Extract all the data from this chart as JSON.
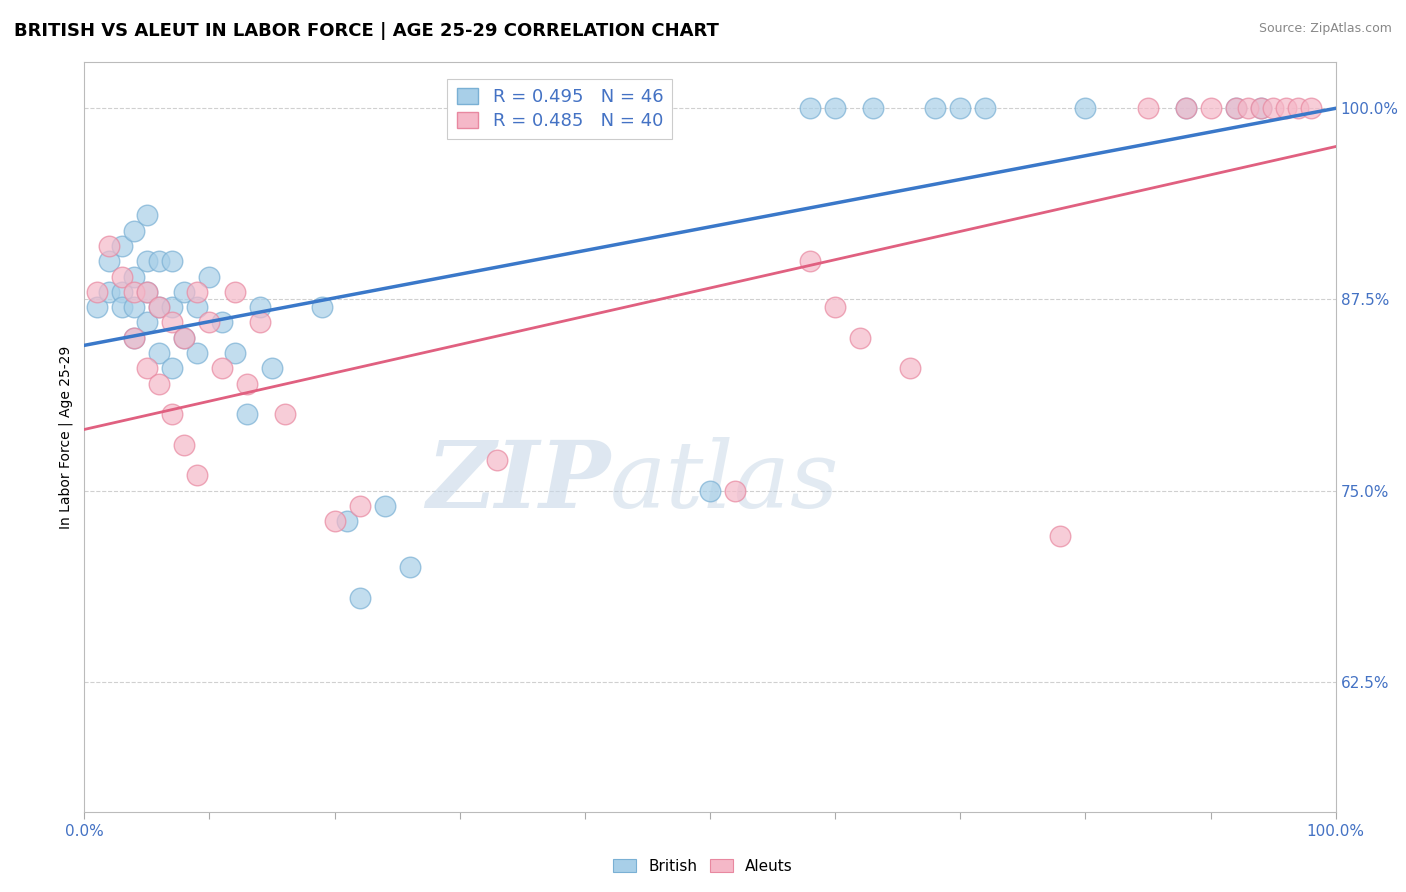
{
  "title": "BRITISH VS ALEUT IN LABOR FORCE | AGE 25-29 CORRELATION CHART",
  "source_text": "Source: ZipAtlas.com",
  "ylabel": "In Labor Force | Age 25-29",
  "british_R": 0.495,
  "british_N": 46,
  "aleut_R": 0.485,
  "aleut_N": 40,
  "british_color": "#a8cfe8",
  "aleut_color": "#f5b8c8",
  "british_edge_color": "#7ab0d4",
  "aleut_edge_color": "#e888a0",
  "british_line_color": "#3a78c9",
  "aleut_line_color": "#e06080",
  "axis_label_color": "#4472C4",
  "background_color": "#ffffff",
  "xmin": 0.0,
  "xmax": 1.0,
  "ymin": 0.54,
  "ymax": 1.03,
  "yticks": [
    0.625,
    0.75,
    0.875,
    1.0
  ],
  "ytick_labels": [
    "62.5%",
    "75.0%",
    "87.5%",
    "100.0%"
  ],
  "watermark_part1": "ZIP",
  "watermark_part2": "atlas",
  "grid_color": "#d0d0d0",
  "tick_color": "#4472C4",
  "legend_R_color": "#4472C4",
  "british_x": [
    0.01,
    0.02,
    0.02,
    0.03,
    0.03,
    0.03,
    0.04,
    0.04,
    0.04,
    0.04,
    0.05,
    0.05,
    0.05,
    0.05,
    0.06,
    0.06,
    0.06,
    0.07,
    0.07,
    0.07,
    0.08,
    0.08,
    0.09,
    0.09,
    0.1,
    0.11,
    0.12,
    0.13,
    0.14,
    0.15,
    0.19,
    0.21,
    0.22,
    0.24,
    0.26,
    0.5,
    0.58,
    0.6,
    0.63,
    0.68,
    0.7,
    0.72,
    0.8,
    0.88,
    0.92,
    0.94
  ],
  "british_y": [
    0.87,
    0.9,
    0.88,
    0.91,
    0.88,
    0.87,
    0.92,
    0.89,
    0.87,
    0.85,
    0.93,
    0.9,
    0.88,
    0.86,
    0.9,
    0.87,
    0.84,
    0.9,
    0.87,
    0.83,
    0.88,
    0.85,
    0.87,
    0.84,
    0.89,
    0.86,
    0.84,
    0.8,
    0.87,
    0.83,
    0.87,
    0.73,
    0.68,
    0.74,
    0.7,
    0.75,
    1.0,
    1.0,
    1.0,
    1.0,
    1.0,
    1.0,
    1.0,
    1.0,
    1.0,
    1.0
  ],
  "aleut_x": [
    0.01,
    0.02,
    0.03,
    0.04,
    0.04,
    0.05,
    0.05,
    0.06,
    0.06,
    0.07,
    0.07,
    0.08,
    0.08,
    0.09,
    0.09,
    0.1,
    0.11,
    0.12,
    0.13,
    0.14,
    0.16,
    0.2,
    0.22,
    0.33,
    0.52,
    0.58,
    0.6,
    0.62,
    0.66,
    0.78,
    0.85,
    0.88,
    0.9,
    0.92,
    0.93,
    0.94,
    0.95,
    0.96,
    0.97,
    0.98
  ],
  "aleut_y": [
    0.88,
    0.91,
    0.89,
    0.88,
    0.85,
    0.88,
    0.83,
    0.87,
    0.82,
    0.86,
    0.8,
    0.85,
    0.78,
    0.88,
    0.76,
    0.86,
    0.83,
    0.88,
    0.82,
    0.86,
    0.8,
    0.73,
    0.74,
    0.77,
    0.75,
    0.9,
    0.87,
    0.85,
    0.83,
    0.72,
    1.0,
    1.0,
    1.0,
    1.0,
    1.0,
    1.0,
    1.0,
    1.0,
    1.0,
    1.0
  ]
}
